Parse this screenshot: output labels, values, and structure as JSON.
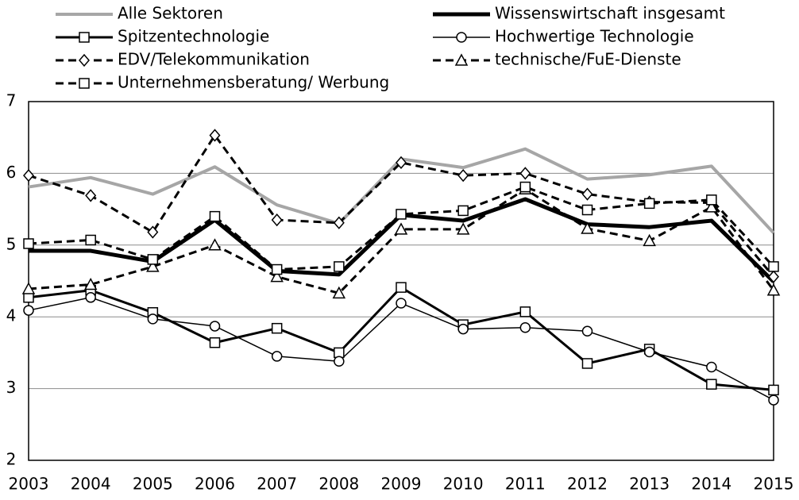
{
  "chart_data": {
    "type": "line",
    "categories": [
      "2003",
      "2004",
      "2005",
      "2006",
      "2007",
      "2008",
      "2009",
      "2010",
      "2011",
      "2012",
      "2013",
      "2014",
      "2015"
    ],
    "ylim": [
      2,
      7
    ],
    "yticks": [
      2,
      3,
      4,
      5,
      6,
      7
    ],
    "grid": true,
    "series": [
      {
        "name": "Alle Sektoren",
        "color": "#a6a6a6",
        "width": 4,
        "dash": "solid",
        "marker": "none",
        "values": [
          5.81,
          5.94,
          5.71,
          6.09,
          5.56,
          5.3,
          6.2,
          6.08,
          6.34,
          5.92,
          5.98,
          6.1,
          5.17
        ]
      },
      {
        "name": "Wissenswirtschaft insgesamt",
        "color": "#000000",
        "width": 5,
        "dash": "solid",
        "marker": "none",
        "values": [
          4.92,
          4.92,
          4.77,
          5.35,
          4.64,
          4.59,
          5.42,
          5.34,
          5.64,
          5.29,
          5.25,
          5.34,
          4.49
        ]
      },
      {
        "name": "Spitzentechnologie",
        "color": "#000000",
        "width": 3,
        "dash": "solid",
        "marker": "square",
        "values": [
          4.27,
          4.37,
          4.06,
          3.64,
          3.84,
          3.5,
          4.41,
          3.89,
          4.07,
          3.35,
          3.55,
          3.06,
          2.98
        ]
      },
      {
        "name": "Hochwertige Technologie",
        "color": "#000000",
        "width": 1.5,
        "dash": "solid",
        "marker": "circle",
        "values": [
          4.09,
          4.27,
          3.97,
          3.87,
          3.45,
          3.38,
          4.19,
          3.83,
          3.85,
          3.8,
          3.51,
          3.3,
          2.84
        ]
      },
      {
        "name": "EDV/Telekommunikation",
        "color": "#000000",
        "width": 3,
        "dash": "dashed",
        "marker": "diamond",
        "values": [
          5.97,
          5.69,
          5.18,
          6.53,
          5.35,
          5.31,
          6.15,
          5.97,
          6.0,
          5.71,
          5.6,
          5.59,
          4.56
        ]
      },
      {
        "name": "technische/FuE-Dienste",
        "color": "#000000",
        "width": 3,
        "dash": "dashed",
        "marker": "triangle",
        "values": [
          4.39,
          4.45,
          4.7,
          5.0,
          4.56,
          4.33,
          5.22,
          5.22,
          5.78,
          5.23,
          5.06,
          5.53,
          4.37
        ]
      },
      {
        "name": "Unternehmensberatung/ Werbung",
        "color": "#000000",
        "width": 3,
        "dash": "dashed",
        "marker": "square",
        "values": [
          5.02,
          5.07,
          4.8,
          5.4,
          4.66,
          4.7,
          5.43,
          5.48,
          5.81,
          5.49,
          5.58,
          5.63,
          4.7
        ]
      }
    ]
  }
}
